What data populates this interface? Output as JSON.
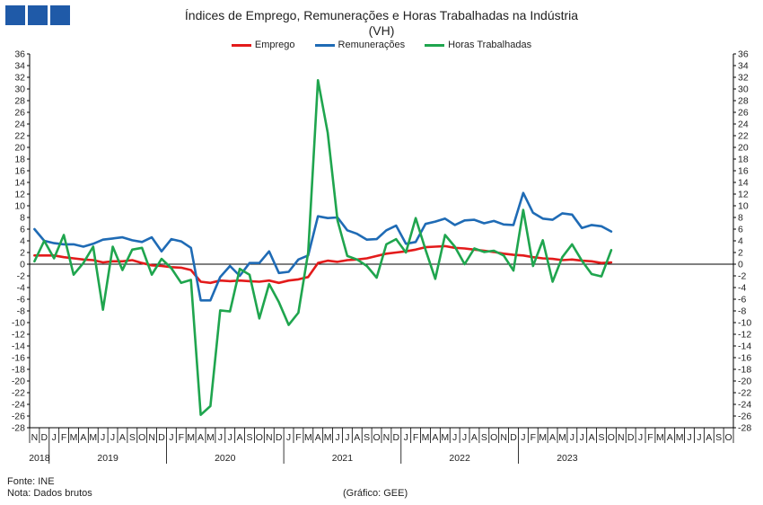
{
  "header": {
    "title": "Índices de Emprego, Remunerações e Horas Trabalhadas na Indústria",
    "subtitle": "(VH)"
  },
  "footer": {
    "source": "Fonte: INE",
    "note": "Nota: Dados brutos",
    "credit": "(Gráfico: GEE)"
  },
  "chart_data": {
    "type": "line",
    "title": "Índices de Emprego, Remunerações e Horas Trabalhadas na Indústria",
    "subtitle": "(VH)",
    "ylim": [
      -28,
      36
    ],
    "yticks": [
      -28,
      -26,
      -24,
      -22,
      -20,
      -18,
      -16,
      -14,
      -12,
      -10,
      -8,
      -6,
      -4,
      -2,
      0,
      2,
      4,
      6,
      8,
      10,
      12,
      14,
      16,
      18,
      20,
      22,
      24,
      26,
      28,
      30,
      32,
      34,
      36
    ],
    "grid": false,
    "legend_position": "top",
    "month_labels": [
      "N",
      "D",
      "J",
      "F",
      "M",
      "A",
      "M",
      "J",
      "J",
      "A",
      "S",
      "O",
      "N",
      "D",
      "J",
      "F",
      "M",
      "A",
      "M",
      "J",
      "J",
      "A",
      "S",
      "O",
      "N",
      "D",
      "J",
      "F",
      "M",
      "A",
      "M",
      "J",
      "J",
      "A",
      "S",
      "O",
      "N",
      "D",
      "J",
      "F",
      "M",
      "A",
      "M",
      "J",
      "J",
      "A",
      "S",
      "O",
      "N",
      "D",
      "J",
      "F",
      "M",
      "A",
      "M",
      "J",
      "J",
      "A",
      "S",
      "O",
      "N",
      "D",
      "J",
      "F",
      "M",
      "A",
      "M",
      "J",
      "J",
      "A",
      "S",
      "O"
    ],
    "years": [
      {
        "label": "2018",
        "start": 0,
        "end": 1
      },
      {
        "label": "2019",
        "start": 2,
        "end": 13
      },
      {
        "label": "2020",
        "start": 14,
        "end": 25
      },
      {
        "label": "2021",
        "start": 26,
        "end": 37
      },
      {
        "label": "2022",
        "start": 38,
        "end": 49
      },
      {
        "label": "2023",
        "start": 50,
        "end": 59
      }
    ],
    "series": [
      {
        "name": "Emprego",
        "color": "#e31b1b",
        "values": [
          1.5,
          1.5,
          1.5,
          1.2,
          1.0,
          0.8,
          0.7,
          0.3,
          0.5,
          0.5,
          0.7,
          0.2,
          -0.2,
          -0.3,
          -0.5,
          -0.6,
          -1.0,
          -3.0,
          -3.2,
          -2.8,
          -2.9,
          -2.8,
          -2.9,
          -3.0,
          -2.8,
          -3.2,
          -2.8,
          -2.6,
          -2.2,
          0.2,
          0.6,
          0.4,
          0.7,
          0.8,
          1.0,
          1.4,
          1.8,
          2.0,
          2.2,
          2.5,
          2.9,
          3.0,
          3.1,
          2.8,
          2.7,
          2.5,
          2.3,
          2.1,
          1.8,
          1.6,
          1.5,
          1.2,
          1.0,
          0.9,
          0.7,
          0.8,
          0.6,
          0.5,
          0.2,
          0.3
        ]
      },
      {
        "name": "Remunerações",
        "color": "#1f6bb5",
        "values": [
          6.0,
          4.0,
          3.6,
          3.4,
          3.4,
          3.0,
          3.5,
          4.2,
          4.4,
          4.6,
          4.1,
          3.8,
          4.6,
          2.2,
          4.3,
          3.9,
          2.8,
          -6.2,
          -6.2,
          -2.2,
          -0.3,
          -2.0,
          0.2,
          0.2,
          2.2,
          -1.5,
          -1.3,
          0.8,
          1.5,
          8.2,
          7.9,
          8.0,
          5.8,
          5.2,
          4.2,
          4.3,
          5.8,
          6.6,
          3.5,
          3.8,
          6.9,
          7.3,
          7.8,
          6.7,
          7.5,
          7.6,
          7.0,
          7.4,
          6.8,
          6.7,
          12.2,
          8.8,
          7.8,
          7.6,
          8.7,
          8.5,
          6.2,
          6.7,
          6.5,
          5.6
        ]
      },
      {
        "name": "Horas Trabalhadas",
        "color": "#1fa54e",
        "values": [
          0.5,
          4.0,
          1.0,
          5.0,
          -1.8,
          0.2,
          3.0,
          -7.8,
          3.0,
          -1.0,
          2.5,
          2.8,
          -1.8,
          0.9,
          -0.7,
          -3.2,
          -2.7,
          -25.8,
          -24.3,
          -7.9,
          -8.1,
          -0.8,
          -1.8,
          -9.3,
          -3.4,
          -6.5,
          -10.4,
          -8.3,
          2.0,
          31.5,
          22.5,
          7.5,
          1.4,
          0.8,
          -0.3,
          -2.3,
          3.4,
          4.3,
          2.0,
          7.9,
          2.5,
          -2.5,
          5.0,
          3.0,
          0.0,
          2.7,
          2.1,
          2.3,
          1.5,
          -1.1,
          9.3,
          -0.3,
          4.1,
          -3.0,
          1.2,
          3.4,
          0.6,
          -1.7,
          -2.1,
          2.4
        ]
      }
    ]
  }
}
